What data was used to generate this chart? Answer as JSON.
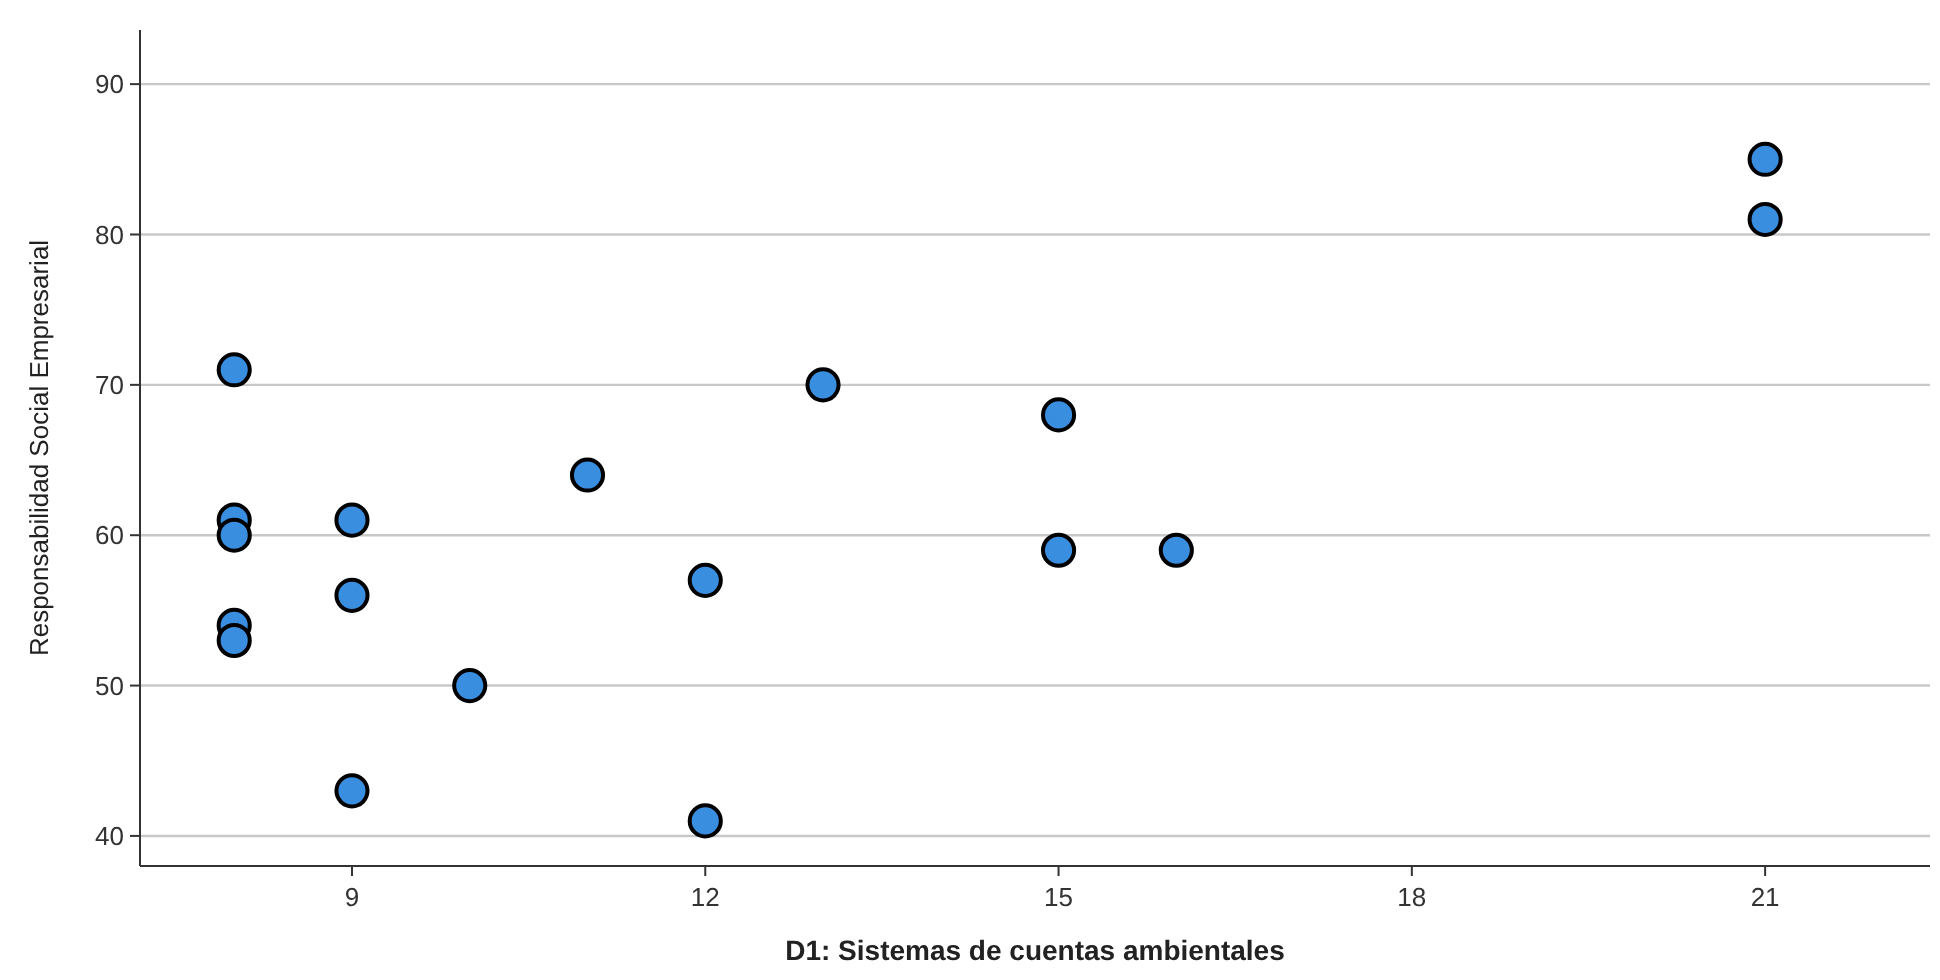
{
  "chart_data": {
    "type": "scatter",
    "xlabel": "D1: Sistemas de cuentas ambientales",
    "ylabel": "Responsabilidad Social Empresarial",
    "x": [
      8,
      8,
      8,
      8,
      8,
      9,
      9,
      9,
      10,
      11,
      12,
      12,
      13,
      15,
      15,
      16,
      21,
      21
    ],
    "values": [
      71,
      61,
      60,
      54,
      53,
      61,
      56,
      43,
      50,
      64,
      57,
      41,
      70,
      68,
      59,
      59,
      85,
      81
    ],
    "color": "#3a8ee0",
    "marker": "circle",
    "grid": "y",
    "xlim": [
      7.2,
      22.4
    ],
    "xticks": [
      9,
      12,
      15,
      18,
      21
    ],
    "ylim": [
      38,
      93.6
    ],
    "yticks": [
      40,
      50,
      60,
      70,
      80,
      90
    ]
  }
}
